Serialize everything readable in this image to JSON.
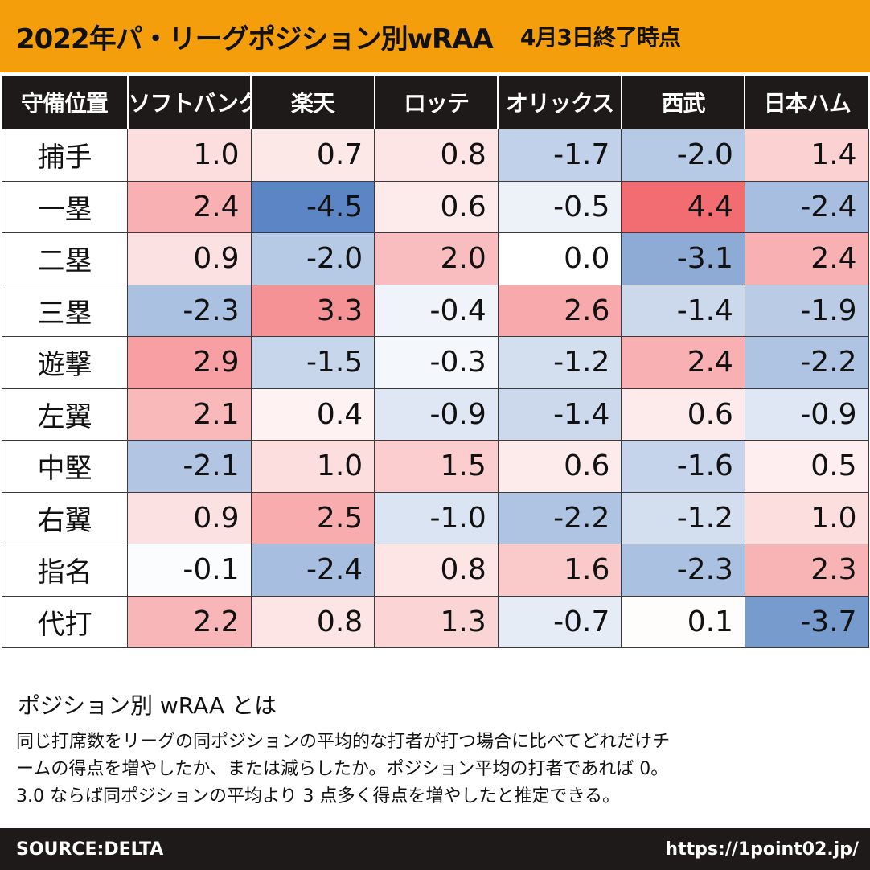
{
  "header": {
    "title": "2022年パ・リーグポジション別wRAA",
    "date": "4月3日終了時点"
  },
  "chart_data": {
    "type": "table",
    "title": "2022年パ・リーグポジション別wRAA",
    "subtitle": "4月3日終了時点",
    "corner_label": "守備位置",
    "teams": [
      "ソフトバンク",
      "楽天",
      "ロッテ",
      "オリックス",
      "西武",
      "日本ハム"
    ],
    "rows": [
      {
        "position": "捕手",
        "values": [
          "1.0",
          "0.7",
          "0.8",
          "-1.7",
          "-2.0",
          "1.4"
        ]
      },
      {
        "position": "一塁",
        "values": [
          "2.4",
          "-4.5",
          "0.6",
          "-0.5",
          "4.4",
          "-2.4"
        ]
      },
      {
        "position": "二塁",
        "values": [
          "0.9",
          "-2.0",
          "2.0",
          "0.0",
          "-3.1",
          "2.4"
        ]
      },
      {
        "position": "三塁",
        "values": [
          "-2.3",
          "3.3",
          "-0.4",
          "2.6",
          "-1.4",
          "-1.9"
        ]
      },
      {
        "position": "遊撃",
        "values": [
          "2.9",
          "-1.5",
          "-0.3",
          "-1.2",
          "2.4",
          "-2.2"
        ]
      },
      {
        "position": "左翼",
        "values": [
          "2.1",
          "0.4",
          "-0.9",
          "-1.4",
          "0.6",
          "-0.9"
        ]
      },
      {
        "position": "中堅",
        "values": [
          "-2.1",
          "1.0",
          "1.5",
          "0.6",
          "-1.6",
          "0.5"
        ]
      },
      {
        "position": "右翼",
        "values": [
          "0.9",
          "2.5",
          "-1.0",
          "-2.2",
          "-1.2",
          "1.0"
        ]
      },
      {
        "position": "指名",
        "values": [
          "-0.1",
          "-2.4",
          "0.8",
          "1.6",
          "-2.3",
          "2.3"
        ]
      },
      {
        "position": "代打",
        "values": [
          "2.2",
          "0.8",
          "1.3",
          "-0.7",
          "0.1",
          "-3.7"
        ]
      }
    ],
    "color_scale": {
      "positive": "#f26a6e",
      "negative": "#5b85c4",
      "neutral": "#ffffff",
      "max_abs": 4.5
    }
  },
  "explanation": {
    "title": "ポジション別 wRAA とは",
    "lines": [
      "同じ打席数をリーグの同ポジションの平均的な打者が打つ場合に比べてどれだけチ",
      "ームの得点を増やしたか、または減らしたか。ポジション平均の打者であれば 0。",
      "3.0 ならば同ポジションの平均より 3 点多く得点を増やしたと推定できる。"
    ]
  },
  "footer": {
    "source": "SOURCE:DELTA",
    "url": "https://1point02.jp/"
  }
}
